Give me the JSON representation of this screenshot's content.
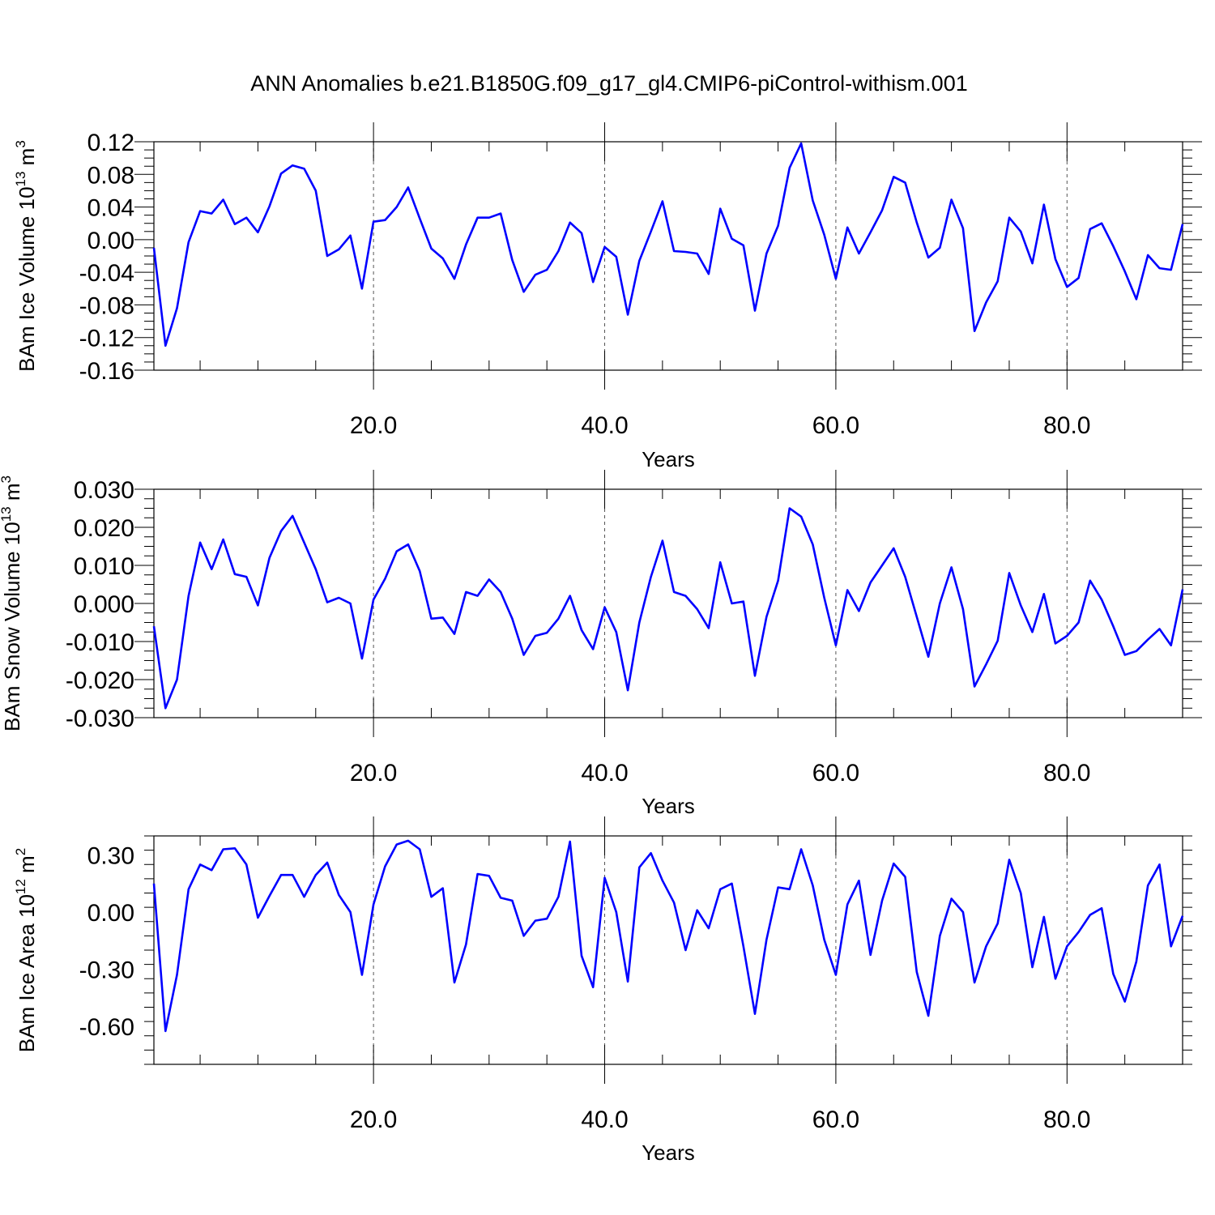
{
  "figure": {
    "title": "ANN Anomalies b.e21.B1850G.f09_g17_gl4.CMIP6-piControl-withism.001",
    "line_color": "#0000ff"
  },
  "chart_data": [
    {
      "type": "line",
      "ylabel_main": "BAm Ice Volume 10",
      "ylabel_exp": "13",
      "ylabel_unit": " m",
      "ylabel_unit_exp": "3",
      "xlabel": "Years",
      "xlim": [
        1,
        90
      ],
      "ylim": [
        -0.16,
        0.12
      ],
      "xticks": [
        20,
        40,
        60,
        80
      ],
      "xtick_labels": [
        "20.0",
        "40.0",
        "60.0",
        "80.0"
      ],
      "yticks": [
        0.12,
        0.08,
        0.04,
        0.0,
        -0.04,
        -0.08,
        -0.12,
        -0.16
      ],
      "ytick_labels": [
        "0.12",
        "0.08",
        "0.04",
        "0.00",
        "-0.04",
        "-0.08",
        "-0.12",
        "-0.16"
      ],
      "grid": "vertical-dashed",
      "series": [
        {
          "x_start": 1,
          "values": [
            -0.01,
            -0.13,
            -0.084,
            -0.003,
            0.035,
            0.032,
            0.049,
            0.019,
            0.027,
            0.009,
            0.041,
            0.081,
            0.091,
            0.087,
            0.06,
            -0.02,
            -0.012,
            0.005,
            -0.06,
            0.022,
            0.024,
            0.04,
            0.064,
            0.026,
            -0.011,
            -0.023,
            -0.048,
            -0.006,
            0.027,
            0.027,
            0.032,
            -0.025,
            -0.064,
            -0.043,
            -0.037,
            -0.014,
            0.021,
            0.008,
            -0.052,
            -0.009,
            -0.021,
            -0.092,
            -0.026,
            0.01,
            0.047,
            -0.014,
            -0.015,
            -0.017,
            -0.042,
            0.038,
            0.001,
            -0.007,
            -0.087,
            -0.017,
            0.017,
            0.088,
            0.118,
            0.048,
            0.006,
            -0.048,
            0.015,
            -0.017,
            0.009,
            0.036,
            0.077,
            0.07,
            0.021,
            -0.022,
            -0.01,
            0.049,
            0.014,
            -0.112,
            -0.077,
            -0.051,
            0.027,
            0.01,
            -0.029,
            0.043,
            -0.024,
            -0.058,
            -0.047,
            0.013,
            0.02,
            -0.008,
            -0.039,
            -0.073,
            -0.019,
            -0.035,
            -0.037,
            0.019
          ]
        }
      ]
    },
    {
      "type": "line",
      "ylabel_main": "BAm Snow Volume 10",
      "ylabel_exp": "13",
      "ylabel_unit": " m",
      "ylabel_unit_exp": "3",
      "xlabel": "Years",
      "xlim": [
        1,
        90
      ],
      "ylim": [
        -0.03,
        0.03
      ],
      "xticks": [
        20,
        40,
        60,
        80
      ],
      "xtick_labels": [
        "20.0",
        "40.0",
        "60.0",
        "80.0"
      ],
      "yticks": [
        0.03,
        0.02,
        0.01,
        0.0,
        -0.01,
        -0.02,
        -0.03
      ],
      "ytick_labels": [
        "0.030",
        "0.020",
        "0.010",
        "0.000",
        "-0.010",
        "-0.020",
        "-0.030"
      ],
      "grid": "vertical-dashed",
      "series": [
        {
          "x_start": 1,
          "values": [
            -0.006,
            -0.0275,
            -0.02,
            0.002,
            0.016,
            0.009,
            0.0168,
            0.0077,
            0.007,
            -0.0005,
            0.012,
            0.019,
            0.023,
            0.016,
            0.009,
            0.0003,
            0.0015,
            0.0,
            -0.0145,
            0.001,
            0.0065,
            0.0137,
            0.0155,
            0.0085,
            -0.004,
            -0.0037,
            -0.008,
            0.003,
            0.002,
            0.0063,
            0.003,
            -0.004,
            -0.0135,
            -0.0085,
            -0.0077,
            -0.004,
            0.002,
            -0.007,
            -0.012,
            -0.001,
            -0.0075,
            -0.0228,
            -0.005,
            0.007,
            0.0165,
            0.003,
            0.002,
            -0.0015,
            -0.0065,
            0.0108,
            0.0,
            0.0005,
            -0.019,
            -0.0035,
            0.006,
            0.025,
            0.0228,
            0.0155,
            0.0015,
            -0.011,
            0.0035,
            -0.002,
            0.0055,
            0.01,
            0.0145,
            0.007,
            -0.0035,
            -0.014,
            0.0,
            0.0095,
            -0.0015,
            -0.0218,
            -0.016,
            -0.0098,
            0.008,
            -0.0005,
            -0.0075,
            0.0025,
            -0.0105,
            -0.0085,
            -0.005,
            0.006,
            0.001,
            -0.006,
            -0.0135,
            -0.0125,
            -0.0095,
            -0.0067,
            -0.011,
            0.0037
          ]
        }
      ]
    },
    {
      "type": "line",
      "ylabel_main": "BAm Ice Area 10",
      "ylabel_exp": "12",
      "ylabel_unit": " m",
      "ylabel_unit_exp": "2",
      "xlabel": "Years",
      "xlim": [
        1,
        90
      ],
      "ylim": [
        -0.8,
        0.4
      ],
      "xticks": [
        20,
        40,
        60,
        80
      ],
      "xtick_labels": [
        "20.0",
        "40.0",
        "60.0",
        "80.0"
      ],
      "yticks": [
        0.3,
        0.0,
        -0.3,
        -0.6
      ],
      "ytick_labels": [
        "0.30",
        "0.00",
        "-0.30",
        "-0.60"
      ],
      "grid": "vertical-dashed",
      "series": [
        {
          "x_start": 1,
          "values": [
            0.15,
            -0.625,
            -0.33,
            0.12,
            0.25,
            0.22,
            0.33,
            0.335,
            0.25,
            -0.03,
            0.085,
            0.195,
            0.195,
            0.08,
            0.195,
            0.26,
            0.09,
            0.0,
            -0.33,
            0.04,
            0.24,
            0.355,
            0.375,
            0.33,
            0.08,
            0.125,
            -0.37,
            -0.17,
            0.2,
            0.19,
            0.075,
            0.06,
            -0.125,
            -0.045,
            -0.035,
            0.08,
            0.37,
            -0.23,
            -0.395,
            0.18,
            0.0,
            -0.365,
            0.235,
            0.31,
            0.165,
            0.05,
            -0.2,
            0.01,
            -0.085,
            0.12,
            0.15,
            -0.18,
            -0.535,
            -0.145,
            0.13,
            0.12,
            0.33,
            0.14,
            -0.145,
            -0.33,
            0.04,
            0.165,
            -0.225,
            0.06,
            0.255,
            0.185,
            -0.315,
            -0.545,
            -0.125,
            0.07,
            0.0,
            -0.37,
            -0.18,
            -0.06,
            0.275,
            0.1,
            -0.29,
            -0.025,
            -0.35,
            -0.18,
            -0.105,
            -0.015,
            0.02,
            -0.325,
            -0.47,
            -0.26,
            0.14,
            0.25,
            -0.18,
            -0.02
          ]
        }
      ]
    }
  ]
}
